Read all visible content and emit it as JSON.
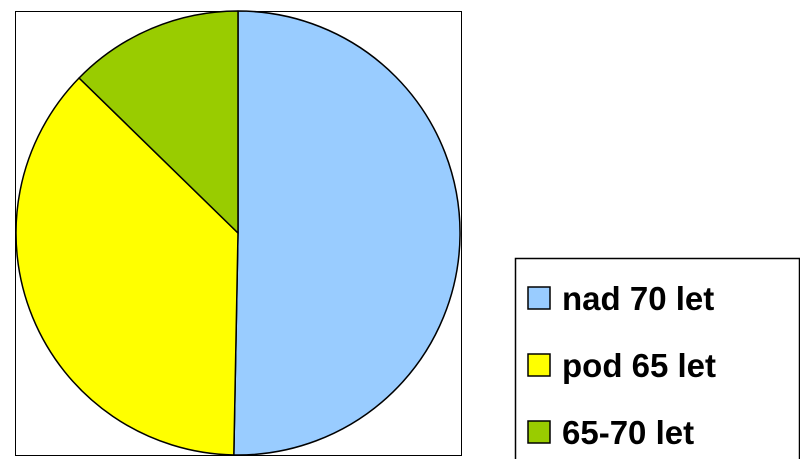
{
  "chart_data": {
    "type": "pie",
    "title": "",
    "slices": [
      {
        "label": "nad 70 let",
        "value": 50.3,
        "color": "#99ccff"
      },
      {
        "label": "pod 65 let",
        "value": 37.0,
        "color": "#ffff00"
      },
      {
        "label": "65-70 let",
        "value": 12.7,
        "color": "#99cc00"
      }
    ],
    "start_angle": "12 o'clock",
    "direction": "clockwise",
    "legend": {
      "placement": "bottom-right",
      "entries": [
        "nad 70 let",
        "pod 65 let",
        "65-70 let"
      ]
    }
  }
}
